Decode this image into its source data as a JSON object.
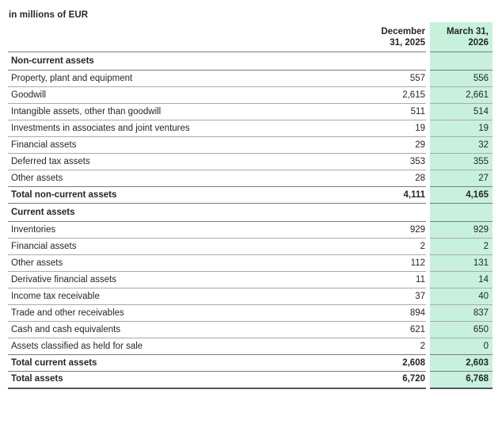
{
  "title": "in millions of EUR",
  "colors": {
    "highlight_bg": "#c7f1dd",
    "border_light": "#aaaaaa",
    "border_strong": "#7a7a7a",
    "border_final": "#565656",
    "text": "#262626"
  },
  "table": {
    "columns": [
      {
        "line1": "December",
        "line2": "31, 2025",
        "highlight": false
      },
      {
        "line1": "March 31,",
        "line2": "2026",
        "highlight": true
      }
    ],
    "rows": [
      {
        "type": "section",
        "label": "Non-current assets",
        "col1": "",
        "col2": "",
        "border": "strong"
      },
      {
        "type": "data",
        "label": "Property, plant and equipment",
        "col1": "557",
        "col2": "556",
        "border": "light"
      },
      {
        "type": "data",
        "label": "Goodwill",
        "col1": "2,615",
        "col2": "2,661",
        "border": "light"
      },
      {
        "type": "data",
        "label": "Intangible assets, other than goodwill",
        "col1": "511",
        "col2": "514",
        "border": "light"
      },
      {
        "type": "data",
        "label": "Investments in associates and joint ventures",
        "col1": "19",
        "col2": "19",
        "border": "light"
      },
      {
        "type": "data",
        "label": "Financial assets",
        "col1": "29",
        "col2": "32",
        "border": "light"
      },
      {
        "type": "data",
        "label": "Deferred tax assets",
        "col1": "353",
        "col2": "355",
        "border": "light"
      },
      {
        "type": "data",
        "label": "Other assets",
        "col1": "28",
        "col2": "27",
        "border": "strong"
      },
      {
        "type": "total",
        "label": "Total non-current assets",
        "col1": "4,111",
        "col2": "4,165",
        "border": "strong"
      },
      {
        "type": "section",
        "label": "Current assets",
        "col1": "",
        "col2": "",
        "border": "strong"
      },
      {
        "type": "data",
        "label": "Inventories",
        "col1": "929",
        "col2": "929",
        "border": "light"
      },
      {
        "type": "data",
        "label": "Financial assets",
        "col1": "2",
        "col2": "2",
        "border": "light"
      },
      {
        "type": "data",
        "label": "Other assets",
        "col1": "112",
        "col2": "131",
        "border": "light"
      },
      {
        "type": "data",
        "label": "Derivative financial assets",
        "col1": "11",
        "col2": "14",
        "border": "light"
      },
      {
        "type": "data",
        "label": "Income tax receivable",
        "col1": "37",
        "col2": "40",
        "border": "light"
      },
      {
        "type": "data",
        "label": "Trade and other receivables",
        "col1": "894",
        "col2": "837",
        "border": "light"
      },
      {
        "type": "data",
        "label": "Cash and cash equivalents",
        "col1": "621",
        "col2": "650",
        "border": "light"
      },
      {
        "type": "data",
        "label": "Assets classified as held for sale",
        "col1": "2",
        "col2": "0",
        "border": "strong"
      },
      {
        "type": "total",
        "label": "Total current assets",
        "col1": "2,608",
        "col2": "2,603",
        "border": "strong"
      },
      {
        "type": "total",
        "label": "Total assets",
        "col1": "6,720",
        "col2": "6,768",
        "border": "final"
      }
    ]
  }
}
